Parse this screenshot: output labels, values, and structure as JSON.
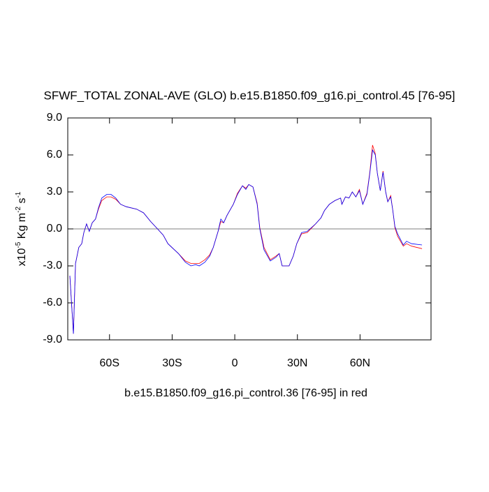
{
  "chart_data": {
    "type": "line",
    "title": "SFWF_TOTAL ZONAL-AVE (GLO) b.e15.B1850.f09_g16.pi_control.45 [76-95]",
    "subtitle": "b.e15.B1850.f09_g16.pi_control.36 [76-95] in red",
    "ylabel_parts": [
      "x10",
      "-5",
      " Kg m",
      "-2",
      " s",
      "-1"
    ],
    "x": [
      -79.0,
      -77.3,
      -76.3,
      -74.7,
      -73.3,
      -72.3,
      -71.0,
      -69.7,
      -68.3,
      -66.7,
      -65.3,
      -63.7,
      -61.3,
      -59.3,
      -57.0,
      -54.7,
      -52.0,
      -47.0,
      -43.7,
      -40.3,
      -37.0,
      -34.3,
      -32.0,
      -27.0,
      -23.7,
      -21.0,
      -18.7,
      -17.0,
      -14.3,
      -12.0,
      -10.3,
      -8.0,
      -6.7,
      -5.3,
      -3.7,
      -0.7,
      1.3,
      3.7,
      5.3,
      6.7,
      8.7,
      10.7,
      12.0,
      14.0,
      17.0,
      19.7,
      21.3,
      22.7,
      26.0,
      28.0,
      29.7,
      32.0,
      34.7,
      38.7,
      41.3,
      43.0,
      45.3,
      48.0,
      50.7,
      51.3,
      53.0,
      54.7,
      56.3,
      58.0,
      59.7,
      61.3,
      63.3,
      64.7,
      66.0,
      67.3,
      68.3,
      69.7,
      71.0,
      72.3,
      73.3,
      74.7,
      75.7,
      76.7,
      78.0,
      80.7,
      82.3,
      84.7,
      89.7
    ],
    "series": [
      {
        "color": "#ff0000",
        "values": [
          -3.8,
          -8.5,
          -2.8,
          -1.5,
          -1.2,
          -0.3,
          0.4,
          -0.2,
          0.5,
          0.8,
          1.6,
          2.3,
          2.6,
          2.6,
          2.4,
          2.0,
          1.8,
          1.6,
          1.3,
          0.6,
          0.0,
          -0.5,
          -1.2,
          -2.0,
          -2.6,
          -2.8,
          -2.8,
          -2.8,
          -2.5,
          -2.1,
          -1.5,
          -0.2,
          0.6,
          0.5,
          1.1,
          2.0,
          2.9,
          3.5,
          3.3,
          3.6,
          3.4,
          2.1,
          0.1,
          -1.5,
          -2.5,
          -2.2,
          -2.0,
          -3.0,
          -3.0,
          -2.2,
          -1.2,
          -0.4,
          -0.3,
          0.4,
          0.9,
          1.5,
          2.0,
          2.3,
          2.5,
          2.0,
          2.6,
          2.5,
          3.0,
          2.6,
          3.2,
          2.0,
          2.9,
          4.6,
          6.8,
          6.1,
          4.5,
          3.1,
          4.7,
          3.0,
          2.2,
          2.7,
          1.5,
          0.1,
          -0.6,
          -1.4,
          -1.2,
          -1.4,
          -1.6
        ]
      },
      {
        "color": "#0000ff",
        "values": [
          -3.8,
          -8.5,
          -2.8,
          -1.5,
          -1.2,
          -0.3,
          0.4,
          -0.2,
          0.5,
          0.8,
          1.7,
          2.5,
          2.8,
          2.8,
          2.5,
          2.0,
          1.8,
          1.6,
          1.3,
          0.6,
          0.0,
          -0.5,
          -1.2,
          -2.0,
          -2.7,
          -3.0,
          -2.9,
          -3.0,
          -2.7,
          -2.2,
          -1.5,
          -0.2,
          0.8,
          0.5,
          1.1,
          2.0,
          2.8,
          3.5,
          3.2,
          3.6,
          3.4,
          2.0,
          0.0,
          -1.7,
          -2.6,
          -2.3,
          -2.0,
          -3.0,
          -3.0,
          -2.2,
          -1.2,
          -0.3,
          -0.2,
          0.4,
          0.9,
          1.5,
          2.0,
          2.3,
          2.5,
          2.0,
          2.6,
          2.5,
          3.0,
          2.6,
          3.1,
          2.0,
          2.8,
          4.5,
          6.4,
          6.0,
          4.5,
          3.1,
          4.6,
          3.0,
          2.2,
          2.6,
          1.5,
          0.2,
          -0.4,
          -1.3,
          -1.0,
          -1.2,
          -1.3
        ]
      }
    ],
    "xlim": [
      -80,
      94
    ],
    "xticks": [
      {
        "value": -60,
        "label": "60S"
      },
      {
        "value": -30,
        "label": "30S"
      },
      0,
      {
        "value": 30,
        "label": "30N"
      },
      {
        "value": 60,
        "label": "60N"
      }
    ],
    "ylim": [
      -9,
      9
    ],
    "yticks": [
      {
        "value": -9,
        "label": "-9.0"
      },
      {
        "value": -6,
        "label": "-6.0"
      },
      {
        "value": -3,
        "label": "-3.0"
      },
      {
        "value": 0,
        "label": "0.0"
      },
      {
        "value": 3,
        "label": "3.0"
      },
      {
        "value": 6,
        "label": "6.0"
      },
      {
        "value": 9,
        "label": "9.0"
      }
    ],
    "zero_line": true
  }
}
